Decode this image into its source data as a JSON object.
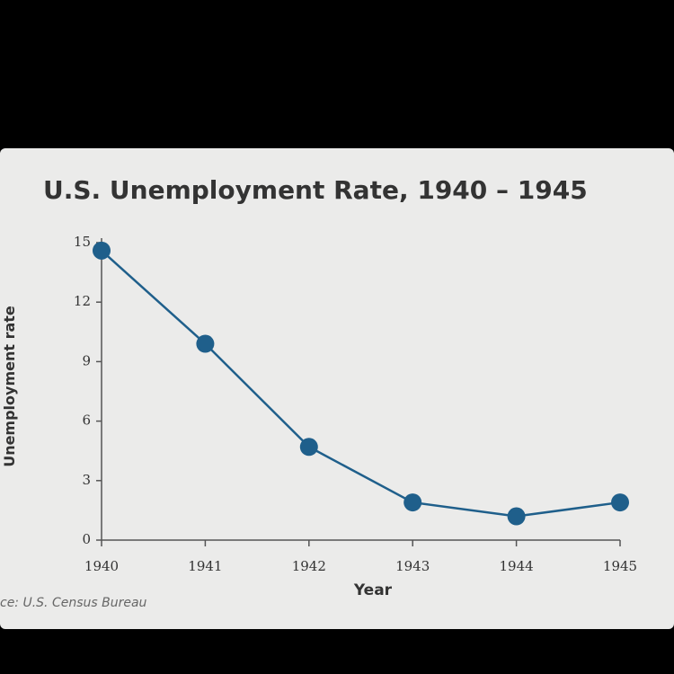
{
  "chart_data": {
    "type": "line",
    "title": "U.S. Unemployment Rate, 1940 – 1945",
    "x_label": "Year",
    "y_label": "Unemployment rate",
    "source": "ce: U.S. Census Bureau",
    "x": [
      1940,
      1941,
      1942,
      1943,
      1944,
      1945
    ],
    "xlim": [
      1940,
      1945
    ],
    "xticks": [
      1940,
      1941,
      1942,
      1943,
      1944,
      1945
    ],
    "ylim": [
      0,
      15
    ],
    "yticks": [
      0,
      3,
      6,
      9,
      12,
      15
    ],
    "series": [
      {
        "name": "Unemployment rate",
        "color": "#1f5f8b",
        "values": [
          14.6,
          9.9,
          4.7,
          1.9,
          1.2,
          1.9
        ]
      }
    ]
  }
}
